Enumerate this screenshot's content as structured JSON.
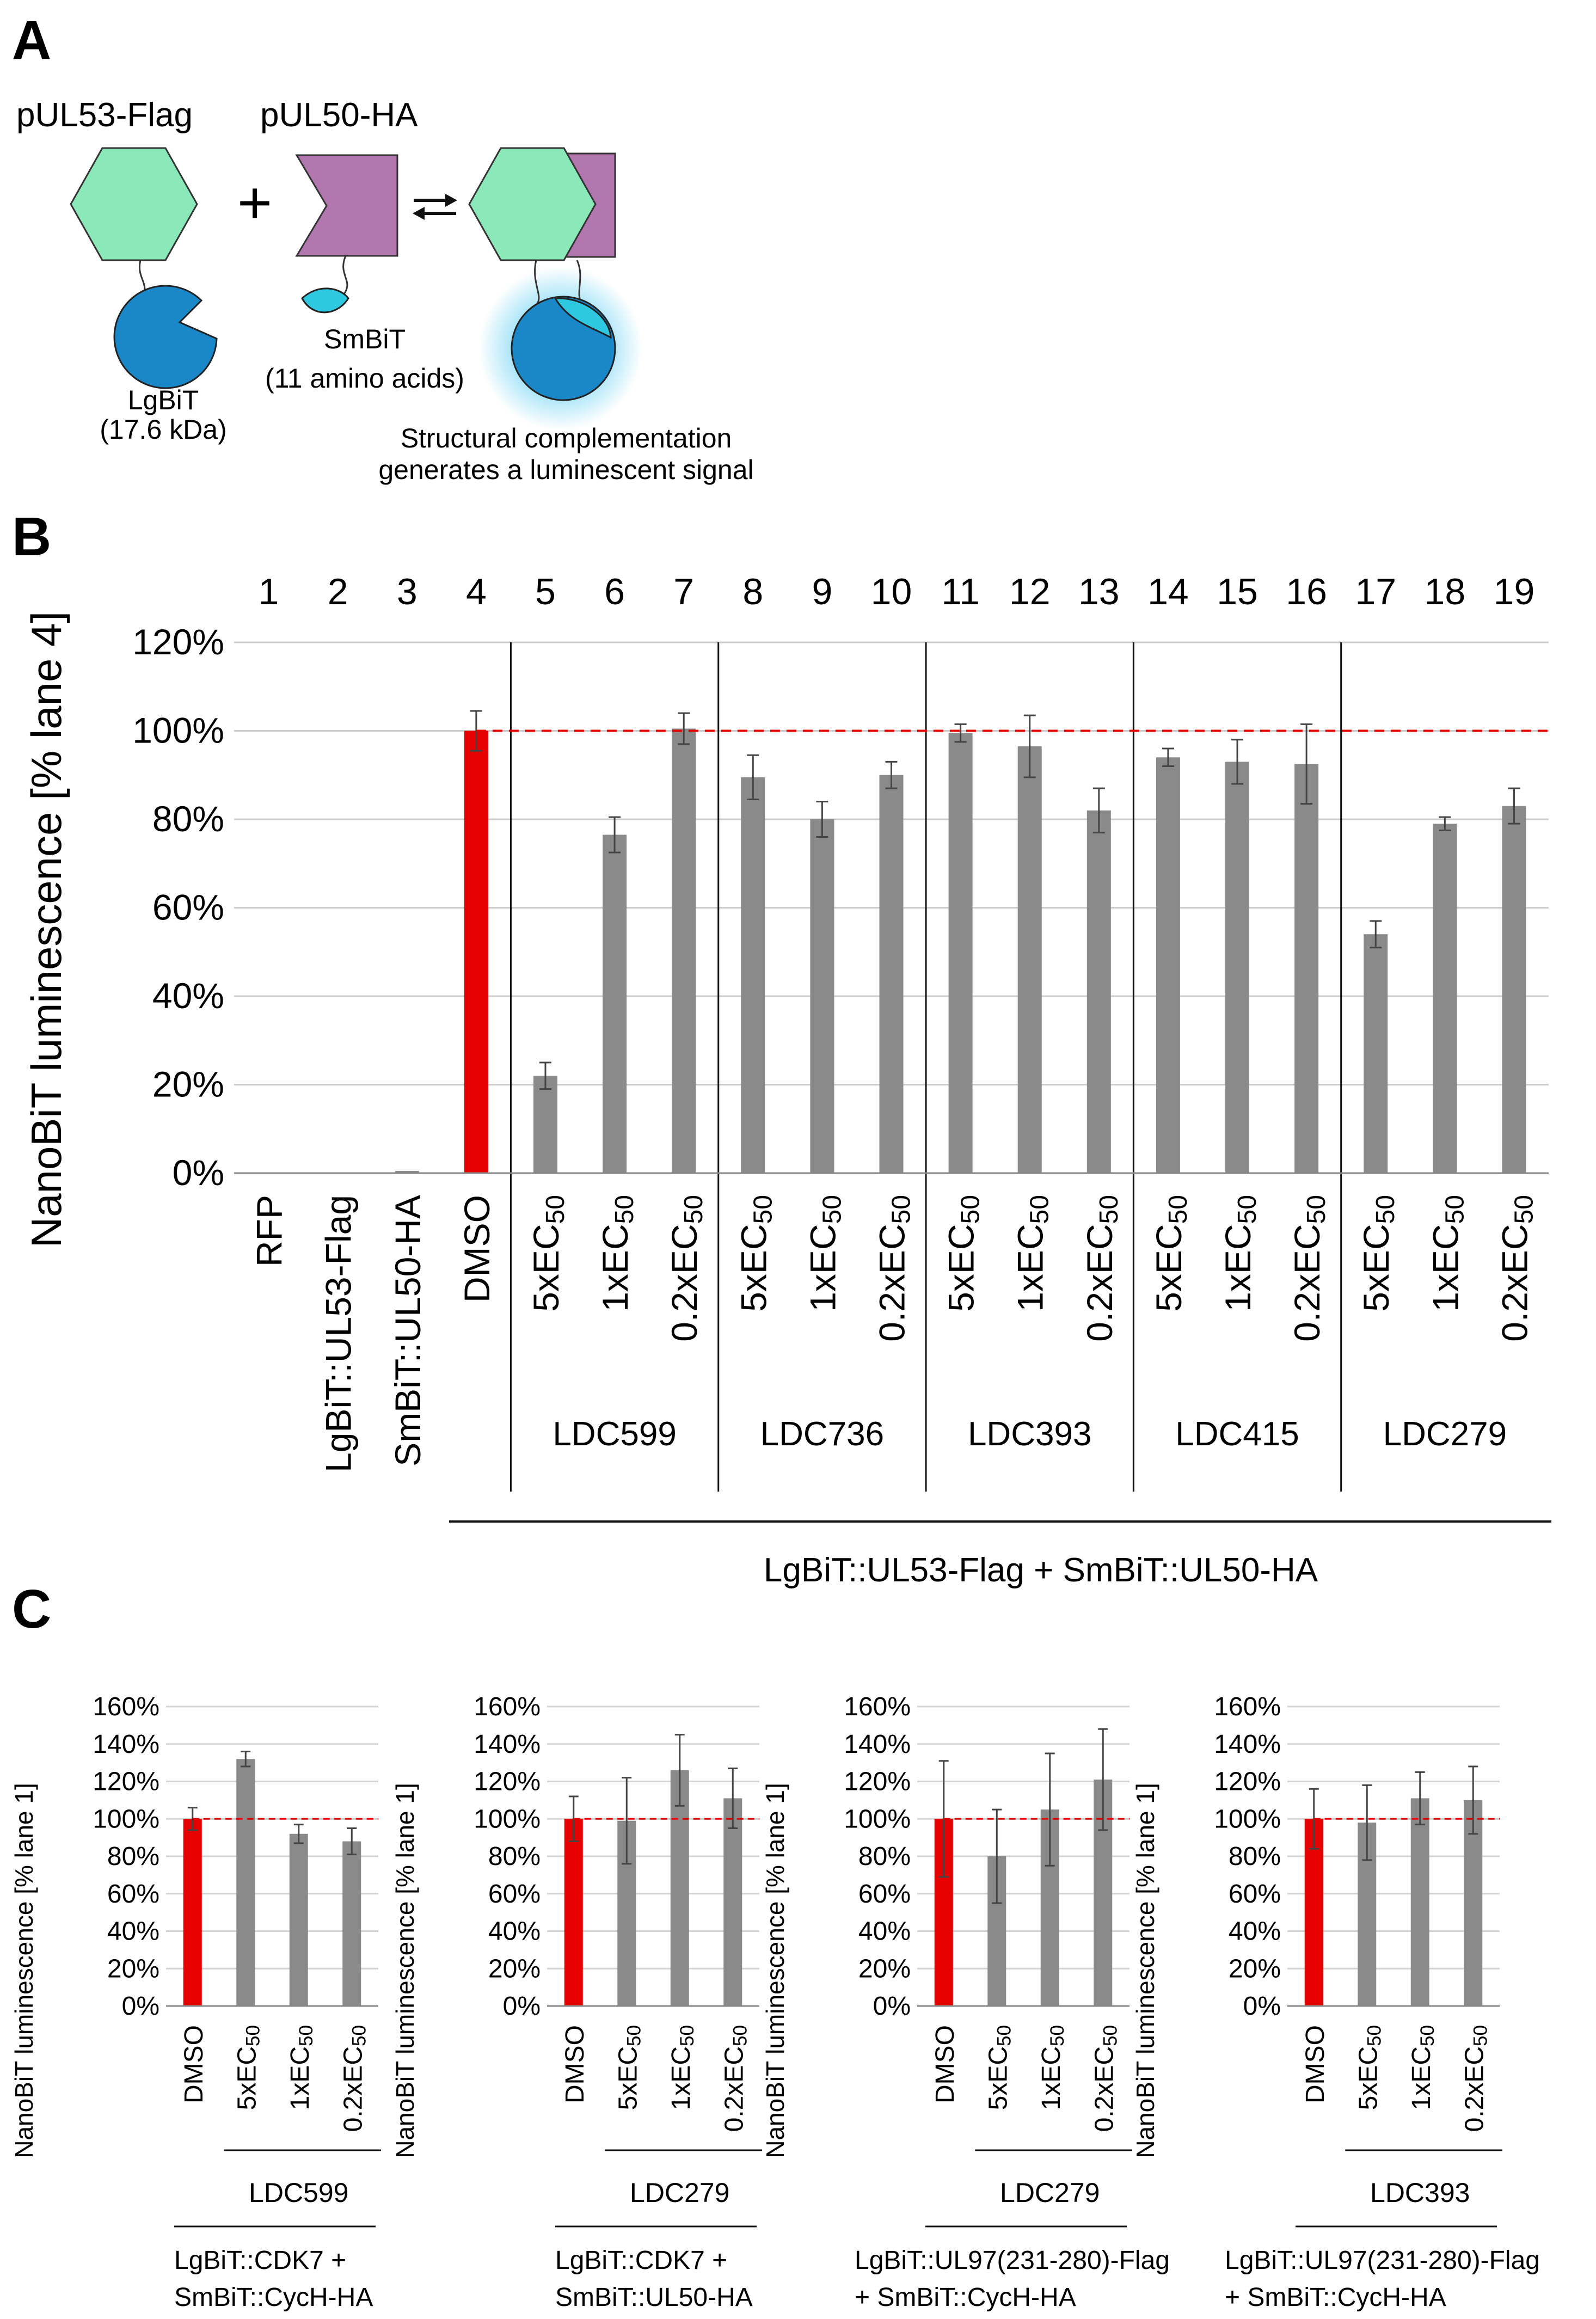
{
  "panels": {
    "A": "A",
    "B": "B",
    "C": "C"
  },
  "schematic": {
    "label_ul53": "pUL53-Flag",
    "label_ul50": "pUL50-HA",
    "plus": "+",
    "lgbit_name": "LgBiT",
    "lgbit_size": "(17.6 kDa)",
    "smbit_name": "SmBiT",
    "smbit_size": "(11 amino acids)",
    "caption_line1": "Structural complementation",
    "caption_line2": "generates a luminescent signal",
    "colors": {
      "hexagon": "#8ae8b9",
      "chevron": "#b377b0",
      "lgbit": "#1a87c8",
      "smbit": "#2ec9e0",
      "glow": "#7fd8f5"
    }
  },
  "chart_data": [
    {
      "type": "bar",
      "title": "",
      "ylabel": "NanoBiT luminescence [% lane 4]",
      "ylim": [
        0,
        120
      ],
      "yticks": [
        "0%",
        "20%",
        "40%",
        "60%",
        "80%",
        "100%",
        "120%"
      ],
      "reference_line": 100,
      "lane_numbers": [
        "1",
        "2",
        "3",
        "4",
        "5",
        "6",
        "7",
        "8",
        "9",
        "10",
        "11",
        "12",
        "13",
        "14",
        "15",
        "16",
        "17",
        "18",
        "19"
      ],
      "categories": [
        "RFP",
        "LgBiT::UL53-Flag",
        "SmBiT::UL50-HA",
        "DMSO",
        "5xEC50",
        "1xEC50",
        "0.2xEC50",
        "5xEC50",
        "1xEC50",
        "0.2xEC50",
        "5xEC50",
        "1xEC50",
        "0.2xEC50",
        "5xEC50",
        "1xEC50",
        "0.2xEC50",
        "5xEC50",
        "1xEC50",
        "0.2xEC50"
      ],
      "values": [
        0,
        0,
        0.5,
        100,
        22,
        76.5,
        100.5,
        89.5,
        80,
        90,
        99.5,
        96.5,
        82,
        94,
        93,
        92.5,
        54,
        79,
        83
      ],
      "errors": [
        0,
        0,
        0,
        4.5,
        3,
        4,
        3.5,
        5,
        4,
        3,
        2,
        7,
        5,
        2,
        5,
        9,
        3,
        1.5,
        4
      ],
      "highlight_index": 3,
      "groups": [
        {
          "label": "LDC599",
          "lanes": [
            5,
            7
          ]
        },
        {
          "label": "LDC736",
          "lanes": [
            8,
            10
          ]
        },
        {
          "label": "LDC393",
          "lanes": [
            11,
            13
          ]
        },
        {
          "label": "LDC415",
          "lanes": [
            14,
            16
          ]
        },
        {
          "label": "LDC279",
          "lanes": [
            17,
            19
          ]
        }
      ],
      "bottom_label": "LgBiT::UL53-Flag + SmBiT::UL50-HA",
      "colors": {
        "bar": "#8a8a8a",
        "highlight": "#e60000",
        "reference": "#e60000",
        "grid": "#cccccc"
      }
    },
    {
      "type": "bar",
      "ylabel": "NanoBiT luminescence [% lane 1]",
      "ylim": [
        0,
        160
      ],
      "yticks": [
        "0%",
        "20%",
        "40%",
        "60%",
        "80%",
        "100%",
        "120%",
        "140%",
        "160%"
      ],
      "reference_line": 100,
      "categories": [
        "DMSO",
        "5xEC50",
        "1xEC50",
        "0.2xEC50"
      ],
      "values": [
        100,
        132,
        92,
        88
      ],
      "errors": [
        6,
        4,
        5,
        7
      ],
      "compound": "LDC599",
      "construct_line1": "LgBiT::CDK7 +",
      "construct_line2": "SmBiT::CycH-HA"
    },
    {
      "type": "bar",
      "ylabel": "NanoBiT luminescence [% lane 1]",
      "ylim": [
        0,
        160
      ],
      "yticks": [
        "0%",
        "20%",
        "40%",
        "60%",
        "80%",
        "100%",
        "120%",
        "140%",
        "160%"
      ],
      "reference_line": 100,
      "categories": [
        "DMSO",
        "5xEC50",
        "1xEC50",
        "0.2xEC50"
      ],
      "values": [
        100,
        99,
        126,
        111
      ],
      "errors": [
        12,
        23,
        19,
        16
      ],
      "compound": "LDC279",
      "construct_line1": "LgBiT::CDK7 +",
      "construct_line2": "SmBiT::UL50-HA"
    },
    {
      "type": "bar",
      "ylabel": "NanoBiT luminescence [% lane 1]",
      "ylim": [
        0,
        160
      ],
      "yticks": [
        "0%",
        "20%",
        "40%",
        "60%",
        "80%",
        "100%",
        "120%",
        "140%",
        "160%"
      ],
      "reference_line": 100,
      "categories": [
        "DMSO",
        "5xEC50",
        "1xEC50",
        "0.2xEC50"
      ],
      "values": [
        100,
        80,
        105,
        121
      ],
      "errors": [
        31,
        25,
        30,
        27
      ],
      "compound": "LDC279",
      "construct_line1": "LgBiT::UL97(231-280)-Flag",
      "construct_line2": "+ SmBiT::CycH-HA"
    },
    {
      "type": "bar",
      "ylabel": "NanoBiT luminescence [% lane 1]",
      "ylim": [
        0,
        160
      ],
      "yticks": [
        "0%",
        "20%",
        "40%",
        "60%",
        "80%",
        "100%",
        "120%",
        "140%",
        "160%"
      ],
      "reference_line": 100,
      "categories": [
        "DMSO",
        "5xEC50",
        "1xEC50",
        "0.2xEC50"
      ],
      "values": [
        100,
        98,
        111,
        110
      ],
      "errors": [
        16,
        20,
        14,
        18
      ],
      "compound": "LDC393",
      "construct_line1": "LgBiT::UL97(231-280)-Flag",
      "construct_line2": "+ SmBiT::CycH-HA"
    }
  ]
}
